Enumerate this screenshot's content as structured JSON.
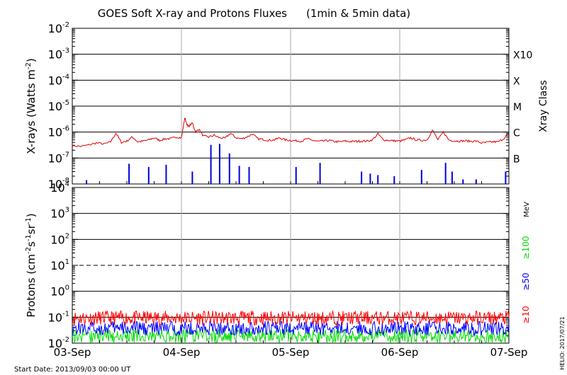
{
  "title": "GOES Soft X-ray and Protons Fluxes",
  "subtitle": "(1min & 5min data)",
  "start_date": "Start Date: 2013/09/03 00:00 UT",
  "helio_date": "HELIO: 2017/07/21",
  "chart_data": [
    {
      "type": "line",
      "panel": "xray",
      "ylabel": "X-rays (Watts m⁻²)",
      "ylabel_main": "X-rays (Watts m",
      "ylabel_sup": "-2",
      "ylabel_end": ")",
      "y_scale": "log",
      "ylim": [
        1e-08,
        0.01
      ],
      "ytick_labels": [
        {
          "base": "10",
          "exp": "-8"
        },
        {
          "base": "10",
          "exp": "-7"
        },
        {
          "base": "10",
          "exp": "-6"
        },
        {
          "base": "10",
          "exp": "-5"
        },
        {
          "base": "10",
          "exp": "-4"
        },
        {
          "base": "10",
          "exp": "-3"
        },
        {
          "base": "10",
          "exp": "-2"
        }
      ],
      "right_axis_label": "Xray Class",
      "class_labels": [
        "B",
        "C",
        "M",
        "X",
        "X10"
      ],
      "x_ticks": [
        "03-Sep",
        "04-Sep",
        "05-Sep",
        "06-Sep",
        "07-Sep"
      ],
      "grid": "horizontal lines at each decade from 1e-7 to 1e-3",
      "series": [
        {
          "color": "#dd0000",
          "x_days": [
            0.0,
            0.08,
            0.15,
            0.22,
            0.3,
            0.35,
            0.4,
            0.45,
            0.5,
            0.55,
            0.6,
            0.65,
            0.7,
            0.75,
            0.8,
            0.85,
            0.9,
            0.95,
            1.0,
            1.03,
            1.06,
            1.1,
            1.13,
            1.16,
            1.2,
            1.25,
            1.3,
            1.35,
            1.4,
            1.45,
            1.5,
            1.55,
            1.6,
            1.65,
            1.7,
            1.75,
            1.8,
            1.85,
            1.9,
            1.95,
            2.0,
            2.05,
            2.1,
            2.15,
            2.2,
            2.25,
            2.3,
            2.35,
            2.4,
            2.45,
            2.5,
            2.55,
            2.6,
            2.65,
            2.7,
            2.75,
            2.8,
            2.85,
            2.9,
            2.95,
            3.0,
            3.05,
            3.1,
            3.15,
            3.2,
            3.25,
            3.3,
            3.35,
            3.4,
            3.45,
            3.5,
            3.55,
            3.6,
            3.65,
            3.7,
            3.75,
            3.8,
            3.85,
            3.9,
            3.95,
            4.0
          ],
          "y": [
            3e-07,
            2.8e-07,
            3.2e-07,
            3.8e-07,
            3.5e-07,
            4.2e-07,
            9e-07,
            4e-07,
            4.5e-07,
            6.5e-07,
            4.2e-07,
            4.5e-07,
            5e-07,
            6e-07,
            4.8e-07,
            5.5e-07,
            5.5e-07,
            6.5e-07,
            6e-07,
            3.5e-06,
            1.6e-06,
            2.2e-06,
            1e-06,
            1.3e-06,
            7e-07,
            6.5e-07,
            7.5e-07,
            6e-07,
            5.8e-07,
            9e-07,
            6e-07,
            5.5e-07,
            6.5e-07,
            8.5e-07,
            5.5e-07,
            5.2e-07,
            4.8e-07,
            5e-07,
            6e-07,
            5e-07,
            4.8e-07,
            4.6e-07,
            4.5e-07,
            5.5e-07,
            4.8e-07,
            4.4e-07,
            4.5e-07,
            4.8e-07,
            4.3e-07,
            4.2e-07,
            4.5e-07,
            4.3e-07,
            4.4e-07,
            4.5e-07,
            4.5e-07,
            5e-07,
            8.5e-07,
            5e-07,
            4.8e-07,
            4.6e-07,
            4.5e-07,
            5e-07,
            6e-07,
            5e-07,
            4.8e-07,
            5e-07,
            1.2e-06,
            5e-07,
            1e-06,
            5e-07,
            4.6e-07,
            4.5e-07,
            4.6e-07,
            4.4e-07,
            4.5e-07,
            3.8e-07,
            4e-07,
            4.2e-07,
            4.2e-07,
            5.5e-07,
            9e-07
          ]
        },
        {
          "color": "#0000dd",
          "style": "spikes",
          "x_days": [
            0.13,
            0.52,
            0.7,
            0.86,
            1.1,
            1.27,
            1.35,
            1.44,
            1.53,
            1.62,
            2.05,
            2.27,
            2.65,
            2.73,
            2.8,
            2.95,
            3.2,
            3.42,
            3.48,
            3.58,
            3.7,
            3.97
          ],
          "y": [
            1.4e-08,
            6e-08,
            4.5e-08,
            5.5e-08,
            3e-08,
            3.2e-07,
            3.5e-07,
            1.5e-07,
            5e-08,
            4.5e-08,
            4.5e-08,
            6.5e-08,
            3e-08,
            2.5e-08,
            2.2e-08,
            2e-08,
            3.5e-08,
            6.5e-08,
            3e-08,
            1.5e-08,
            1.5e-08,
            3e-08
          ]
        }
      ]
    },
    {
      "type": "line",
      "panel": "protons",
      "ylabel_main": "Protons (cm",
      "ylabel_parts": [
        "-2",
        "s",
        "-1",
        "sr",
        "-1"
      ],
      "y_scale": "log",
      "ylim": [
        0.01,
        10000
      ],
      "ytick_labels": [
        {
          "base": "10",
          "exp": "-2"
        },
        {
          "base": "10",
          "exp": "-1"
        },
        {
          "base": "10",
          "exp": "0"
        },
        {
          "base": "10",
          "exp": "1"
        },
        {
          "base": "10",
          "exp": "2"
        },
        {
          "base": "10",
          "exp": "3"
        },
        {
          "base": "10",
          "exp": "4"
        }
      ],
      "threshold": 10,
      "unit_label": "MeV",
      "x_ticks": [
        "03-Sep",
        "04-Sep",
        "05-Sep",
        "06-Sep",
        "07-Sep"
      ],
      "series": [
        {
          "name": "≥10",
          "color": "#ff0000",
          "level": 0.1
        },
        {
          "name": "≥50",
          "color": "#0000ff",
          "level": 0.04
        },
        {
          "name": "≥100",
          "color": "#00dd00",
          "level": 0.02
        }
      ]
    }
  ]
}
